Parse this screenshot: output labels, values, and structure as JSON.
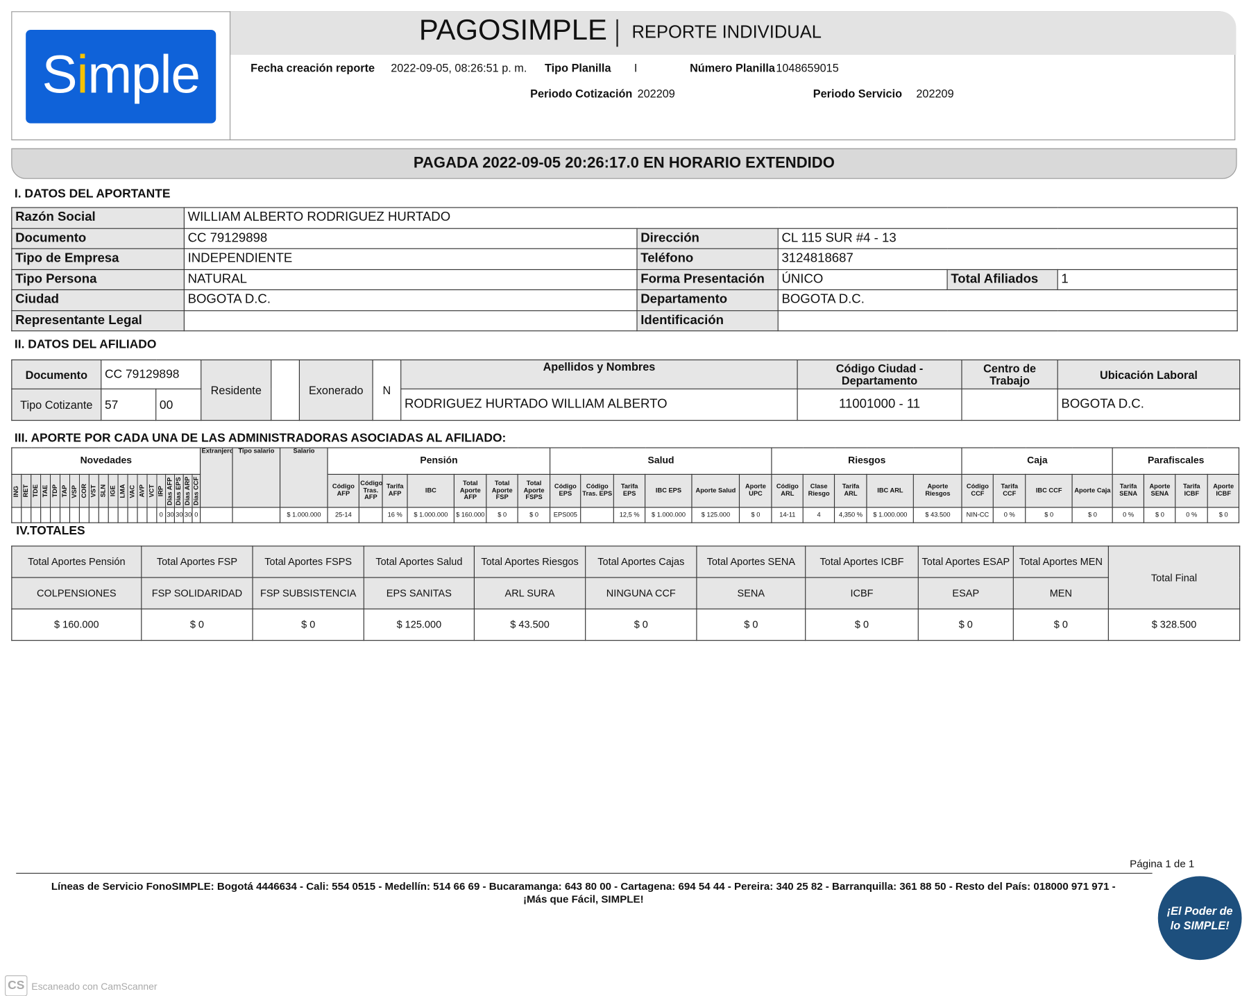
{
  "header": {
    "logo_text": "Simple",
    "title": "PAGOSIMPLE",
    "subtitle": "REPORTE INDIVIDUAL",
    "fecha_label": "Fecha creación reporte",
    "fecha_value": "2022-09-05, 08:26:51 p. m.",
    "tipo_planilla_label": "Tipo Planilla",
    "tipo_planilla_value": "I",
    "numero_planilla_label": "Número Planilla",
    "numero_planilla_value": "1048659015",
    "periodo_cot_label": "Periodo Cotización",
    "periodo_cot_value": "202209",
    "periodo_serv_label": "Periodo Servicio",
    "periodo_serv_value": "202209"
  },
  "status": "PAGADA 2022-09-05 20:26:17.0 EN HORARIO EXTENDIDO",
  "aportante": {
    "heading": "I. DATOS DEL APORTANTE",
    "razon_social_label": "Razón Social",
    "razon_social": "WILLIAM ALBERTO RODRIGUEZ HURTADO",
    "documento_label": "Documento",
    "documento": "CC 79129898",
    "direccion_label": "Dirección",
    "direccion": "CL 115 SUR #4 - 13",
    "tipo_empresa_label": "Tipo de Empresa",
    "tipo_empresa": "INDEPENDIENTE",
    "telefono_label": "Teléfono",
    "telefono": "3124818687",
    "tipo_persona_label": "Tipo Persona",
    "tipo_persona": "NATURAL",
    "forma_label": "Forma Presentación",
    "forma": "ÚNICO",
    "total_afiliados_label": "Total Afiliados",
    "total_afiliados": "1",
    "ciudad_label": "Ciudad",
    "ciudad": "BOGOTA D.C.",
    "departamento_label": "Departamento",
    "departamento": "BOGOTA D.C.",
    "representante_label": "Representante Legal",
    "representante": "",
    "identificacion_label": "Identificación",
    "identificacion": ""
  },
  "afiliado": {
    "heading": "II. DATOS DEL AFILIADO",
    "documento_label": "Documento",
    "documento": "CC 79129898",
    "tipo_cotizante_label": "Tipo Cotizante",
    "tipo_cotizante": "57",
    "subtipo": "00",
    "residente_label": "Residente",
    "residente": "",
    "exonerado_label": "Exonerado",
    "exonerado": "N",
    "nombres_label": "Apellidos y Nombres",
    "nombres": "RODRIGUEZ HURTADO WILLIAM ALBERTO",
    "codigo_ciudad_label": "Código Ciudad - Departamento",
    "codigo_ciudad": "11001000 - 11",
    "centro_label": "Centro de Trabajo",
    "centro": "",
    "ubicacion_label": "Ubicación Laboral",
    "ubicacion": "BOGOTA D.C."
  },
  "aportes": {
    "heading": "III. APORTE POR CADA UNA DE LAS ADMINISTRADORAS ASOCIADAS AL AFILIADO:",
    "groups": [
      {
        "label": "Novedades",
        "span": 20
      },
      {
        "label": "",
        "span": 1
      },
      {
        "label": "",
        "span": 1
      },
      {
        "label": "",
        "span": 1
      },
      {
        "label": "Pensión",
        "span": 7
      },
      {
        "label": "Salud",
        "span": 6
      },
      {
        "label": "Riesgos",
        "span": 5
      },
      {
        "label": "Caja",
        "span": 4
      },
      {
        "label": "Parafiscales",
        "span": 4
      }
    ],
    "columns": [
      {
        "h": "ING",
        "v": true,
        "d": ""
      },
      {
        "h": "RET",
        "v": true,
        "d": ""
      },
      {
        "h": "TDE",
        "v": true,
        "d": ""
      },
      {
        "h": "TAE",
        "v": true,
        "d": ""
      },
      {
        "h": "TDP",
        "v": true,
        "d": ""
      },
      {
        "h": "TAP",
        "v": true,
        "d": ""
      },
      {
        "h": "VSP",
        "v": true,
        "d": ""
      },
      {
        "h": "COR",
        "v": true,
        "d": ""
      },
      {
        "h": "VST",
        "v": true,
        "d": ""
      },
      {
        "h": "SLN",
        "v": true,
        "d": ""
      },
      {
        "h": "IGE",
        "v": true,
        "d": ""
      },
      {
        "h": "LMA",
        "v": true,
        "d": ""
      },
      {
        "h": "VAC",
        "v": true,
        "d": ""
      },
      {
        "h": "AVP",
        "v": true,
        "d": ""
      },
      {
        "h": "VCT",
        "v": true,
        "d": ""
      },
      {
        "h": "IRP",
        "v": true,
        "d": "0"
      },
      {
        "h": "Días AFP",
        "v": true,
        "d": "30"
      },
      {
        "h": "Días EPS",
        "v": true,
        "d": "30"
      },
      {
        "h": "Días ARP",
        "v": true,
        "d": "30"
      },
      {
        "h": "Días CCF",
        "v": true,
        "d": "0"
      },
      {
        "h": "Extranjero",
        "d": ""
      },
      {
        "h": "Tipo salario",
        "d": ""
      },
      {
        "h": "Salario",
        "d": "$ 1.000.000"
      },
      {
        "h": "Código AFP",
        "d": "25-14"
      },
      {
        "h": "Código Tras. AFP",
        "d": ""
      },
      {
        "h": "Tarifa AFP",
        "d": "16 %"
      },
      {
        "h": "IBC",
        "d": "$ 1.000.000"
      },
      {
        "h": "Total Aporte AFP",
        "d": "$ 160.000"
      },
      {
        "h": "Total Aporte FSP",
        "d": "$ 0"
      },
      {
        "h": "Total Aporte FSPS",
        "d": "$ 0"
      },
      {
        "h": "Código EPS",
        "d": "EPS005"
      },
      {
        "h": "Código Tras. EPS",
        "d": ""
      },
      {
        "h": "Tarifa EPS",
        "d": "12,5 %"
      },
      {
        "h": "IBC EPS",
        "d": "$ 1.000.000"
      },
      {
        "h": "Aporte Salud",
        "d": "$ 125.000"
      },
      {
        "h": "Aporte UPC",
        "d": "$ 0"
      },
      {
        "h": "Código ARL",
        "d": "14-11"
      },
      {
        "h": "Clase Riesgo",
        "d": "4"
      },
      {
        "h": "Tarifa ARL",
        "d": "4,350 %"
      },
      {
        "h": "IBC ARL",
        "d": "$ 1.000.000"
      },
      {
        "h": "Aporte Riesgos",
        "d": "$ 43.500"
      },
      {
        "h": "Código CCF",
        "d": "NIN-CC"
      },
      {
        "h": "Tarifa CCF",
        "d": "0 %"
      },
      {
        "h": "IBC CCF",
        "d": "$ 0"
      },
      {
        "h": "Aporte Caja",
        "d": "$ 0"
      },
      {
        "h": "Tarifa SENA",
        "d": "0 %"
      },
      {
        "h": "Aporte SENA",
        "d": "$ 0"
      },
      {
        "h": "Tarifa ICBF",
        "d": "0 %"
      },
      {
        "h": "Aporte ICBF",
        "d": "$ 0"
      }
    ]
  },
  "totales": {
    "heading": "IV.TOTALES",
    "columns": [
      {
        "title": "Total Aportes Pensión",
        "entity": "COLPENSIONES",
        "value": "$ 160.000"
      },
      {
        "title": "Total Aportes FSP",
        "entity": "FSP SOLIDARIDAD",
        "value": "$ 0"
      },
      {
        "title": "Total Aportes FSPS",
        "entity": "FSP SUBSISTENCIA",
        "value": "$ 0"
      },
      {
        "title": "Total Aportes Salud",
        "entity": "EPS SANITAS",
        "value": "$ 125.000"
      },
      {
        "title": "Total Aportes Riesgos",
        "entity": "ARL SURA",
        "value": "$ 43.500"
      },
      {
        "title": "Total Aportes Cajas",
        "entity": "NINGUNA CCF",
        "value": "$ 0"
      },
      {
        "title": "Total Aportes SENA",
        "entity": "SENA",
        "value": "$ 0"
      },
      {
        "title": "Total Aportes ICBF",
        "entity": "ICBF",
        "value": "$ 0"
      },
      {
        "title": "Total Aportes ESAP",
        "entity": "ESAP",
        "value": "$ 0"
      },
      {
        "title": "Total Aportes MEN",
        "entity": "MEN",
        "value": "$ 0"
      }
    ],
    "total_final_label": "Total Final",
    "total_final": "$ 328.500"
  },
  "footer": {
    "pagina": "Página 1 de  1",
    "lineas": "Líneas de Servicio FonoSIMPLE: Bogotá 4446634 - Cali: 554 0515 - Medellín: 514 66 69 - Bucaramanga: 643 80 00 - Cartagena: 694 54 44 - Pereira: 340 25 82 - Barranquilla: 361 88 50 - Resto del País: 018000 971 971 -",
    "slogan": "¡Más que Fácil, SIMPLE!",
    "badge": "¡El Poder de lo SIMPLE!"
  },
  "watermark": {
    "logo": "CS",
    "text": "Escaneado con CamScanner"
  },
  "colors": {
    "brand_blue": "#0f62d9",
    "brand_yellow": "#f6c200",
    "badge_blue": "#1d4f7d",
    "cell_gray": "#e6e6e6"
  }
}
